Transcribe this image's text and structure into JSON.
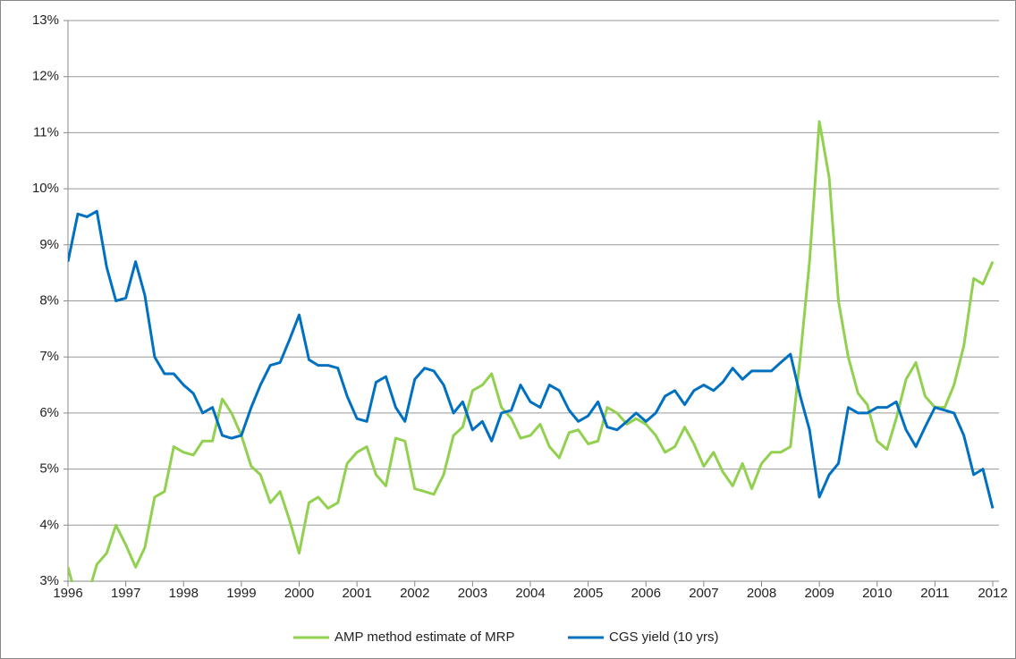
{
  "chart_data": {
    "type": "line",
    "x": [
      1996,
      1996.17,
      1996.33,
      1996.5,
      1996.67,
      1996.83,
      1997,
      1997.17,
      1997.33,
      1997.5,
      1997.67,
      1997.83,
      1998,
      1998.17,
      1998.33,
      1998.5,
      1998.67,
      1998.83,
      1999,
      1999.17,
      1999.33,
      1999.5,
      1999.67,
      1999.83,
      2000,
      2000.17,
      2000.33,
      2000.5,
      2000.67,
      2000.83,
      2001,
      2001.17,
      2001.33,
      2001.5,
      2001.67,
      2001.83,
      2002,
      2002.17,
      2002.33,
      2002.5,
      2002.67,
      2002.83,
      2003,
      2003.17,
      2003.33,
      2003.5,
      2003.67,
      2003.83,
      2004,
      2004.17,
      2004.33,
      2004.5,
      2004.67,
      2004.83,
      2005,
      2005.17,
      2005.33,
      2005.5,
      2005.67,
      2005.83,
      2006,
      2006.17,
      2006.33,
      2006.5,
      2006.67,
      2006.83,
      2007,
      2007.17,
      2007.33,
      2007.5,
      2007.67,
      2007.83,
      2008,
      2008.17,
      2008.33,
      2008.5,
      2008.67,
      2008.83,
      2009,
      2009.17,
      2009.33,
      2009.5,
      2009.67,
      2009.83,
      2010,
      2010.17,
      2010.33,
      2010.5,
      2010.67,
      2010.83,
      2011,
      2011.17,
      2011.33,
      2011.5,
      2011.67,
      2011.83,
      2012
    ],
    "series": [
      {
        "name": "AMP method estimate of MRP",
        "color": "#92d050",
        "values": [
          3.25,
          2.6,
          2.7,
          3.3,
          3.5,
          4.0,
          3.65,
          3.25,
          3.6,
          4.5,
          4.6,
          5.4,
          5.3,
          5.25,
          5.5,
          5.5,
          6.25,
          6.0,
          5.6,
          5.05,
          4.9,
          4.4,
          4.6,
          4.1,
          3.5,
          4.4,
          4.5,
          4.3,
          4.4,
          5.1,
          5.3,
          5.4,
          4.9,
          4.7,
          5.55,
          5.5,
          4.65,
          4.6,
          4.55,
          4.9,
          5.6,
          5.75,
          6.4,
          6.5,
          6.7,
          6.1,
          5.9,
          5.55,
          5.6,
          5.8,
          5.4,
          5.2,
          5.65,
          5.7,
          5.45,
          5.5,
          6.1,
          6.0,
          5.8,
          5.9,
          5.8,
          5.6,
          5.3,
          5.4,
          5.75,
          5.45,
          5.05,
          5.3,
          4.95,
          4.7,
          5.1,
          4.65,
          5.1,
          5.3,
          5.3,
          5.4,
          7.0,
          8.7,
          11.2,
          10.2,
          8.0,
          7.0,
          6.35,
          6.15,
          5.5,
          5.35,
          5.9,
          6.6,
          6.9,
          6.3,
          6.1,
          6.1,
          6.5,
          7.2,
          8.4,
          8.3,
          8.7
        ]
      },
      {
        "name": "CGS yield (10 yrs)",
        "color": "#0070c0",
        "values": [
          8.7,
          9.55,
          9.5,
          9.6,
          8.6,
          8.0,
          8.05,
          8.7,
          8.1,
          7.0,
          6.7,
          6.7,
          6.5,
          6.35,
          6.0,
          6.1,
          5.6,
          5.55,
          5.6,
          6.1,
          6.5,
          6.85,
          6.9,
          7.3,
          7.75,
          6.95,
          6.85,
          6.85,
          6.8,
          6.3,
          5.9,
          5.85,
          6.55,
          6.65,
          6.1,
          5.85,
          6.6,
          6.8,
          6.75,
          6.5,
          6.0,
          6.2,
          5.7,
          5.85,
          5.5,
          6.0,
          6.05,
          6.5,
          6.2,
          6.1,
          6.5,
          6.4,
          6.05,
          5.85,
          5.95,
          6.2,
          5.75,
          5.7,
          5.85,
          6.0,
          5.85,
          6.0,
          6.3,
          6.4,
          6.15,
          6.4,
          6.5,
          6.4,
          6.55,
          6.8,
          6.6,
          6.75,
          6.75,
          6.75,
          6.9,
          7.05,
          6.3,
          5.7,
          4.5,
          4.9,
          5.1,
          6.1,
          6.0,
          6.0,
          6.1,
          6.1,
          6.2,
          5.7,
          5.4,
          5.75,
          6.1,
          6.05,
          6.0,
          5.6,
          4.9,
          5.0,
          4.3
        ]
      }
    ],
    "xlim": [
      1996,
      2012
    ],
    "xticks": [
      1996,
      1997,
      1998,
      1999,
      2000,
      2001,
      2002,
      2003,
      2004,
      2005,
      2006,
      2007,
      2008,
      2009,
      2010,
      2011,
      2012
    ],
    "ylim": [
      3,
      13
    ],
    "yticks": [
      {
        "value": 3,
        "label": "3%"
      },
      {
        "value": 4,
        "label": "4%"
      },
      {
        "value": 5,
        "label": "5%"
      },
      {
        "value": 6,
        "label": "6%"
      },
      {
        "value": 7,
        "label": "7%"
      },
      {
        "value": 8,
        "label": "8%"
      },
      {
        "value": 9,
        "label": "9%"
      },
      {
        "value": 10,
        "label": "10%"
      },
      {
        "value": 11,
        "label": "11%"
      },
      {
        "value": 12,
        "label": "12%"
      },
      {
        "value": 13,
        "label": "13%"
      }
    ],
    "grid": true,
    "legend": "bottom"
  }
}
